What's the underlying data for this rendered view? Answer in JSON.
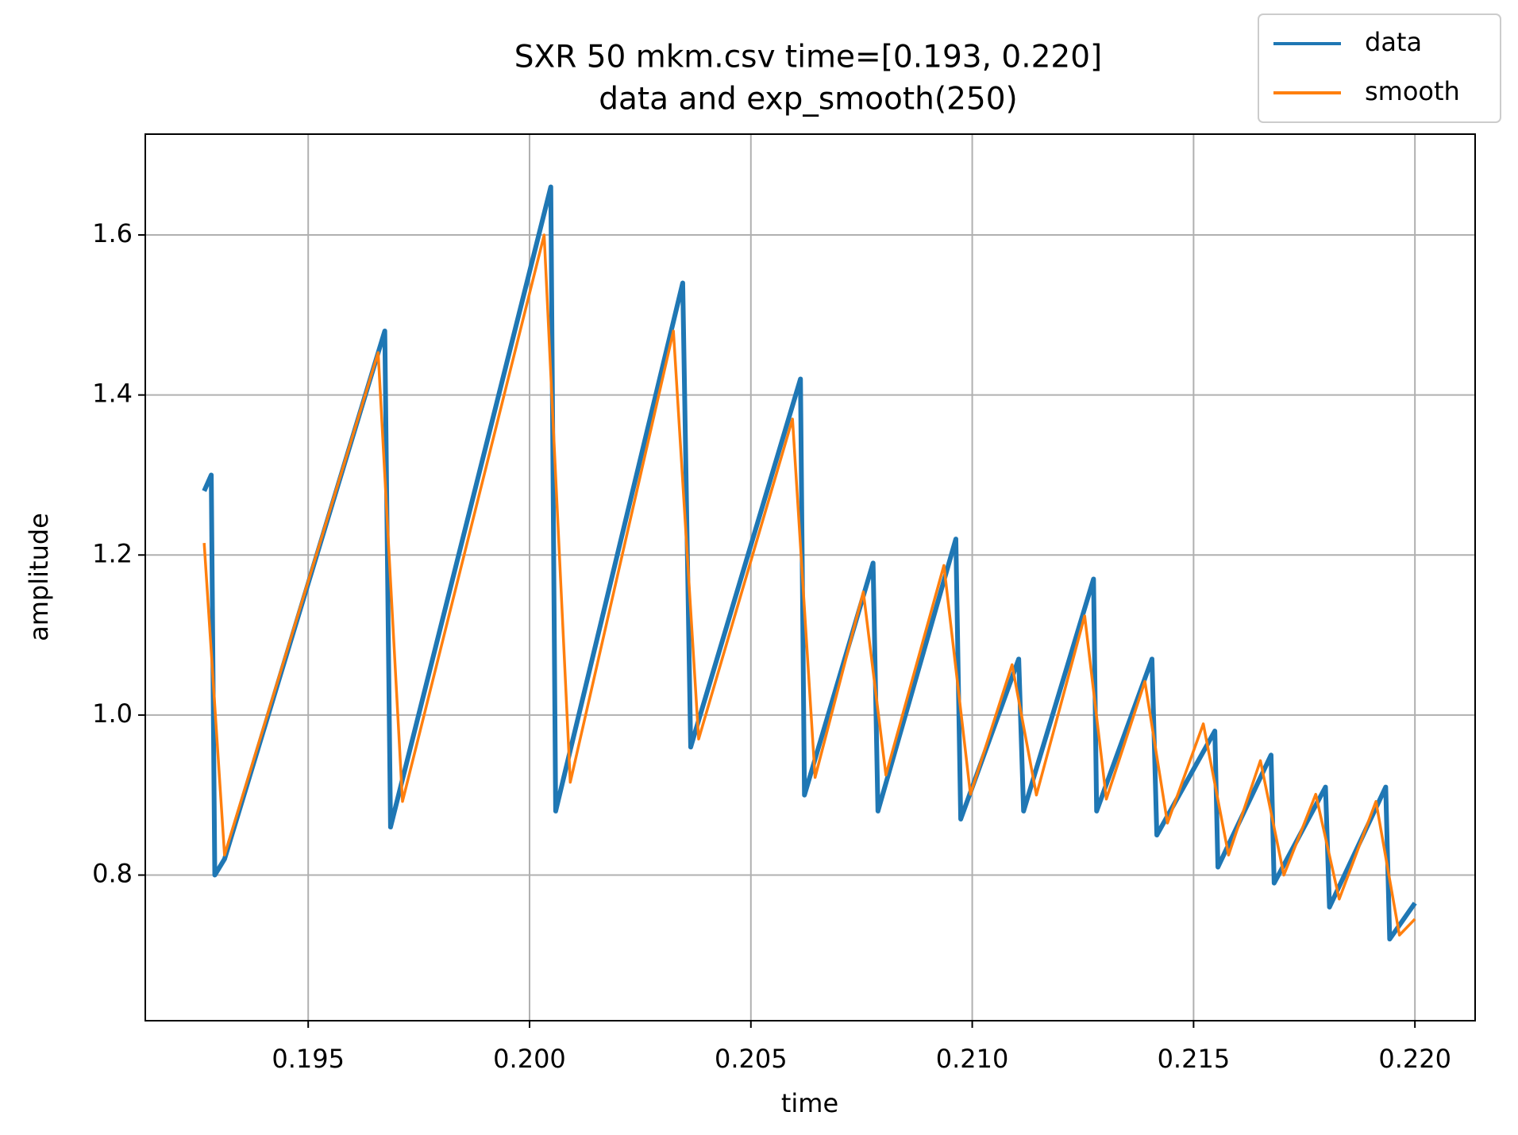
{
  "chart_data": {
    "type": "line",
    "title": [
      "SXR 50 mkm.csv time=[0.193, 0.220]",
      "data and exp_smooth(250)"
    ],
    "x_label": "time",
    "y_label": "amplitude",
    "xlim": [
      0.19132,
      0.22136
    ],
    "ylim": [
      0.618,
      1.726
    ],
    "xticks": [
      0.195,
      {
        "value": 0.2,
        "label": "0.200"
      },
      0.205,
      {
        "value": 0.21,
        "label": "0.210"
      },
      0.215,
      {
        "value": 0.22,
        "label": "0.220"
      }
    ],
    "yticks": [
      0.8,
      {
        "value": 1,
        "label": "1.0"
      },
      1.2,
      1.4,
      1.6
    ],
    "grid": true,
    "legend": "upper-right-outside",
    "series": [
      {
        "name": "data",
        "color": "#1f77b4",
        "x": [
          0.19265,
          0.19281,
          0.19289,
          0.19311,
          0.19673,
          0.19686,
          0.20048,
          0.20059,
          0.20346,
          0.20364,
          0.20612,
          0.20621,
          0.20776,
          0.20787,
          0.20963,
          0.20974,
          0.21105,
          0.21116,
          0.21274,
          0.21281,
          0.21406,
          0.21417,
          0.21548,
          0.21555,
          0.21675,
          0.21682,
          0.21798,
          0.21807,
          0.21934,
          0.21943,
          0.22
        ],
        "values": [
          1.28,
          1.3,
          0.8,
          0.82,
          1.48,
          0.86,
          1.66,
          0.88,
          1.54,
          0.96,
          1.42,
          0.9,
          1.19,
          0.88,
          1.22,
          0.87,
          1.07,
          0.88,
          1.17,
          0.88,
          1.07,
          0.85,
          0.98,
          0.81,
          0.95,
          0.79,
          0.91,
          0.76,
          0.91,
          0.72,
          0.765
        ]
      },
      {
        "name": "smooth",
        "color": "#ff7f0e",
        "x": [
          0.19265,
          0.19311,
          0.19658,
          0.19713,
          0.20033,
          0.20092,
          0.20325,
          0.20382,
          0.20594,
          0.20645,
          0.20754,
          0.20805,
          0.20936,
          0.20996,
          0.2109,
          0.21145,
          0.21254,
          0.21303,
          0.2139,
          0.21441,
          0.21522,
          0.21579,
          0.21651,
          0.21704,
          0.21776,
          0.21829,
          0.21912,
          0.21965,
          0.22
        ],
        "values": [
          1.215,
          0.825,
          1.453,
          0.892,
          1.6,
          0.916,
          1.48,
          0.97,
          1.37,
          0.922,
          1.154,
          0.925,
          1.187,
          0.901,
          1.063,
          0.9,
          1.124,
          0.895,
          1.042,
          0.865,
          0.989,
          0.825,
          0.943,
          0.8,
          0.901,
          0.77,
          0.892,
          0.725,
          0.745
        ]
      }
    ]
  }
}
